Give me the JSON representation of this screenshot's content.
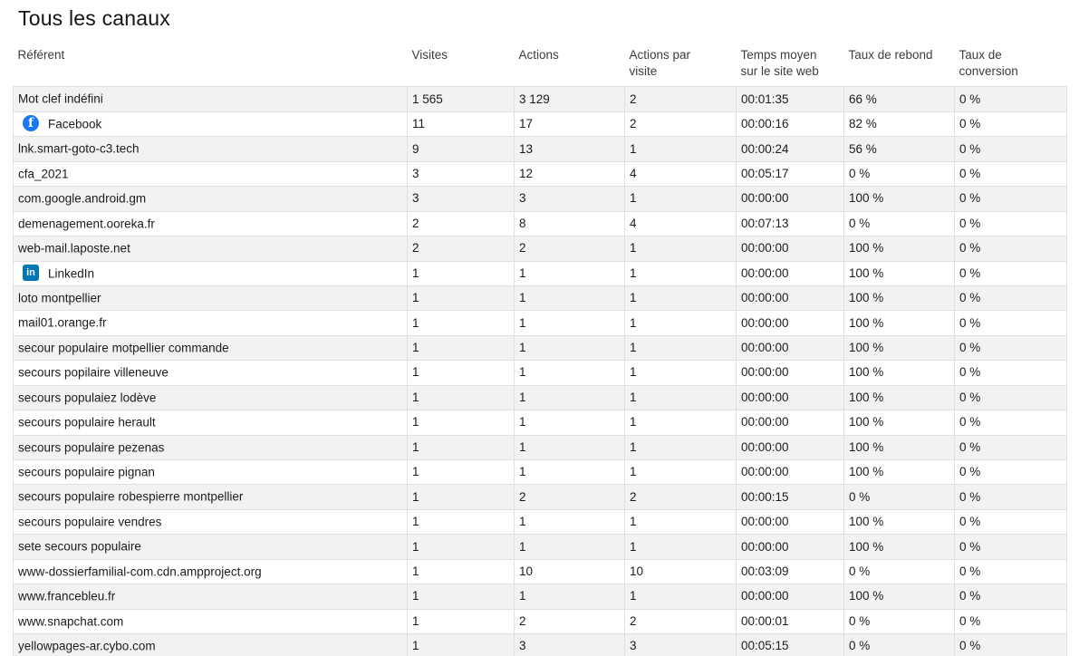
{
  "page": {
    "title": "Tous les canaux"
  },
  "table": {
    "columns": [
      {
        "key": "label",
        "label": "Référent"
      },
      {
        "key": "visits",
        "label": "Visites"
      },
      {
        "key": "actions",
        "label": "Actions"
      },
      {
        "key": "actions_per_visit",
        "label": "Actions par visite"
      },
      {
        "key": "avg_time",
        "label": "Temps moyen sur le site web"
      },
      {
        "key": "bounce_rate",
        "label": "Taux de rebond"
      },
      {
        "key": "conversion_rate",
        "label": "Taux de conversion"
      }
    ],
    "icons": {
      "facebook": {
        "name": "facebook-icon",
        "glyph": "f",
        "color": "#1877F2"
      },
      "linkedin": {
        "name": "linkedin-icon",
        "glyph": "in",
        "color": "#0077B5"
      }
    },
    "rows": [
      {
        "label": "Mot clef indéfini",
        "icon": null,
        "visits": "1 565",
        "actions": "3 129",
        "actions_per_visit": "2",
        "avg_time": "00:01:35",
        "bounce_rate": "66 %",
        "conversion_rate": "0 %"
      },
      {
        "label": "Facebook",
        "icon": "facebook",
        "visits": "11",
        "actions": "17",
        "actions_per_visit": "2",
        "avg_time": "00:00:16",
        "bounce_rate": "82 %",
        "conversion_rate": "0 %"
      },
      {
        "label": "lnk.smart-goto-c3.tech",
        "icon": null,
        "visits": "9",
        "actions": "13",
        "actions_per_visit": "1",
        "avg_time": "00:00:24",
        "bounce_rate": "56 %",
        "conversion_rate": "0 %"
      },
      {
        "label": "cfa_2021",
        "icon": null,
        "visits": "3",
        "actions": "12",
        "actions_per_visit": "4",
        "avg_time": "00:05:17",
        "bounce_rate": "0 %",
        "conversion_rate": "0 %"
      },
      {
        "label": "com.google.android.gm",
        "icon": null,
        "visits": "3",
        "actions": "3",
        "actions_per_visit": "1",
        "avg_time": "00:00:00",
        "bounce_rate": "100 %",
        "conversion_rate": "0 %"
      },
      {
        "label": "demenagement.ooreka.fr",
        "icon": null,
        "visits": "2",
        "actions": "8",
        "actions_per_visit": "4",
        "avg_time": "00:07:13",
        "bounce_rate": "0 %",
        "conversion_rate": "0 %"
      },
      {
        "label": "web-mail.laposte.net",
        "icon": null,
        "visits": "2",
        "actions": "2",
        "actions_per_visit": "1",
        "avg_time": "00:00:00",
        "bounce_rate": "100 %",
        "conversion_rate": "0 %"
      },
      {
        "label": "LinkedIn",
        "icon": "linkedin",
        "visits": "1",
        "actions": "1",
        "actions_per_visit": "1",
        "avg_time": "00:00:00",
        "bounce_rate": "100 %",
        "conversion_rate": "0 %"
      },
      {
        "label": "loto montpellier",
        "icon": null,
        "visits": "1",
        "actions": "1",
        "actions_per_visit": "1",
        "avg_time": "00:00:00",
        "bounce_rate": "100 %",
        "conversion_rate": "0 %"
      },
      {
        "label": "mail01.orange.fr",
        "icon": null,
        "visits": "1",
        "actions": "1",
        "actions_per_visit": "1",
        "avg_time": "00:00:00",
        "bounce_rate": "100 %",
        "conversion_rate": "0 %"
      },
      {
        "label": "secour populaire motpellier commande",
        "icon": null,
        "visits": "1",
        "actions": "1",
        "actions_per_visit": "1",
        "avg_time": "00:00:00",
        "bounce_rate": "100 %",
        "conversion_rate": "0 %"
      },
      {
        "label": "secours popilaire villeneuve",
        "icon": null,
        "visits": "1",
        "actions": "1",
        "actions_per_visit": "1",
        "avg_time": "00:00:00",
        "bounce_rate": "100 %",
        "conversion_rate": "0 %"
      },
      {
        "label": "secours populaiez lodève",
        "icon": null,
        "visits": "1",
        "actions": "1",
        "actions_per_visit": "1",
        "avg_time": "00:00:00",
        "bounce_rate": "100 %",
        "conversion_rate": "0 %"
      },
      {
        "label": "secours populaire herault",
        "icon": null,
        "visits": "1",
        "actions": "1",
        "actions_per_visit": "1",
        "avg_time": "00:00:00",
        "bounce_rate": "100 %",
        "conversion_rate": "0 %"
      },
      {
        "label": "secours populaire pezenas",
        "icon": null,
        "visits": "1",
        "actions": "1",
        "actions_per_visit": "1",
        "avg_time": "00:00:00",
        "bounce_rate": "100 %",
        "conversion_rate": "0 %"
      },
      {
        "label": "secours populaire pignan",
        "icon": null,
        "visits": "1",
        "actions": "1",
        "actions_per_visit": "1",
        "avg_time": "00:00:00",
        "bounce_rate": "100 %",
        "conversion_rate": "0 %"
      },
      {
        "label": "secours populaire robespierre montpellier",
        "icon": null,
        "visits": "1",
        "actions": "2",
        "actions_per_visit": "2",
        "avg_time": "00:00:15",
        "bounce_rate": "0 %",
        "conversion_rate": "0 %"
      },
      {
        "label": "secours populaire vendres",
        "icon": null,
        "visits": "1",
        "actions": "1",
        "actions_per_visit": "1",
        "avg_time": "00:00:00",
        "bounce_rate": "100 %",
        "conversion_rate": "0 %"
      },
      {
        "label": "sete secours populaire",
        "icon": null,
        "visits": "1",
        "actions": "1",
        "actions_per_visit": "1",
        "avg_time": "00:00:00",
        "bounce_rate": "100 %",
        "conversion_rate": "0 %"
      },
      {
        "label": "www-dossierfamilial-com.cdn.ampproject.org",
        "icon": null,
        "visits": "1",
        "actions": "10",
        "actions_per_visit": "10",
        "avg_time": "00:03:09",
        "bounce_rate": "0 %",
        "conversion_rate": "0 %"
      },
      {
        "label": "www.francebleu.fr",
        "icon": null,
        "visits": "1",
        "actions": "1",
        "actions_per_visit": "1",
        "avg_time": "00:00:00",
        "bounce_rate": "100 %",
        "conversion_rate": "0 %"
      },
      {
        "label": "www.snapchat.com",
        "icon": null,
        "visits": "1",
        "actions": "2",
        "actions_per_visit": "2",
        "avg_time": "00:00:01",
        "bounce_rate": "0 %",
        "conversion_rate": "0 %"
      },
      {
        "label": "yellowpages-ar.cybo.com",
        "icon": null,
        "visits": "1",
        "actions": "3",
        "actions_per_visit": "3",
        "avg_time": "00:05:15",
        "bounce_rate": "0 %",
        "conversion_rate": "0 %"
      }
    ]
  }
}
